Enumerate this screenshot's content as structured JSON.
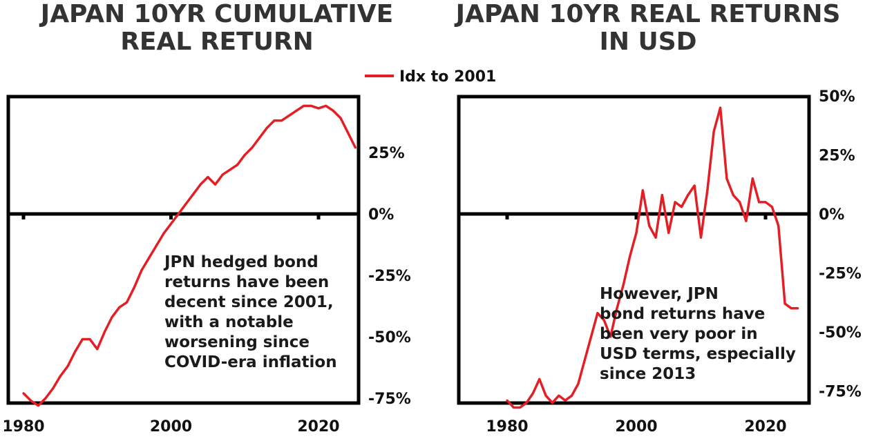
{
  "chart_data": [
    {
      "type": "line",
      "title_lines": [
        "JAPAN 10YR CUMULATIVE",
        "REAL RETURN"
      ],
      "xlabel": "",
      "ylabel": "",
      "x_ticks": [
        "1980",
        "2000",
        "2020"
      ],
      "y_ticks": [
        "25%",
        "0%",
        "-25%",
        "-50%",
        "-75%"
      ],
      "xlim": [
        1980,
        2025
      ],
      "ylim": [
        -87,
        47
      ],
      "grid": false,
      "legend": {
        "position": "top-center",
        "entries": [
          "Idx to 2001"
        ]
      },
      "annotation": [
        "JPN hedged bond",
        "returns have been",
        "decent since 2001,",
        "with a notable",
        "worsening since",
        "COVID-era inflation"
      ],
      "series": [
        {
          "name": "Idx to 2001",
          "color": "#e31e24",
          "x": [
            1980,
            1981,
            1982,
            1983,
            1984,
            1985,
            1986,
            1987,
            1988,
            1989,
            1990,
            1991,
            1992,
            1993,
            1994,
            1995,
            1996,
            1997,
            1998,
            1999,
            2000,
            2001,
            2002,
            2003,
            2004,
            2005,
            2006,
            2007,
            2008,
            2009,
            2010,
            2011,
            2012,
            2013,
            2014,
            2015,
            2016,
            2017,
            2018,
            2019,
            2020,
            2021,
            2022,
            2023,
            2024,
            2025
          ],
          "values": [
            -73,
            -76,
            -78,
            -75,
            -71,
            -66,
            -62,
            -56,
            -51,
            -51,
            -55,
            -48,
            -42,
            -38,
            -36,
            -30,
            -23,
            -18,
            -13,
            -8,
            -4,
            0,
            4,
            8,
            12,
            15,
            12,
            16,
            18,
            20,
            24,
            27,
            31,
            35,
            38,
            38,
            40,
            42,
            44,
            44,
            43,
            44,
            42,
            39,
            33,
            27
          ]
        }
      ]
    },
    {
      "type": "line",
      "title_lines": [
        "JAPAN 10YR REAL RETURNS",
        "IN USD"
      ],
      "xlabel": "",
      "ylabel": "",
      "x_ticks": [
        "1980",
        "2000",
        "2020"
      ],
      "y_ticks": [
        "50%",
        "25%",
        "0%",
        "-25%",
        "-50%",
        "-75%"
      ],
      "xlim": [
        1980,
        2025
      ],
      "ylim": [
        -87,
        52
      ],
      "grid": false,
      "annotation": [
        "However, JPN",
        "bond returns have",
        "been very poor in",
        "USD terms, especially",
        "since 2013"
      ],
      "series": [
        {
          "name": "Idx to 2001",
          "color": "#e31e24",
          "x": [
            1980,
            1981,
            1982,
            1983,
            1984,
            1985,
            1986,
            1987,
            1988,
            1989,
            1990,
            1991,
            1992,
            1993,
            1994,
            1995,
            1996,
            1997,
            1998,
            1999,
            2000,
            2001,
            2002,
            2003,
            2004,
            2005,
            2006,
            2007,
            2008,
            2009,
            2010,
            2011,
            2012,
            2013,
            2014,
            2015,
            2016,
            2017,
            2018,
            2019,
            2020,
            2021,
            2022,
            2023,
            2024,
            2025
          ],
          "values": [
            -79,
            -82,
            -82,
            -80,
            -76,
            -70,
            -77,
            -80,
            -77,
            -79,
            -77,
            -72,
            -62,
            -52,
            -42,
            -45,
            -52,
            -40,
            -30,
            -18,
            -8,
            10,
            -5,
            -10,
            8,
            -8,
            5,
            3,
            8,
            12,
            -10,
            10,
            35,
            45,
            15,
            8,
            5,
            -3,
            15,
            5,
            5,
            3,
            -5,
            -38,
            -40,
            -40
          ]
        }
      ]
    }
  ]
}
